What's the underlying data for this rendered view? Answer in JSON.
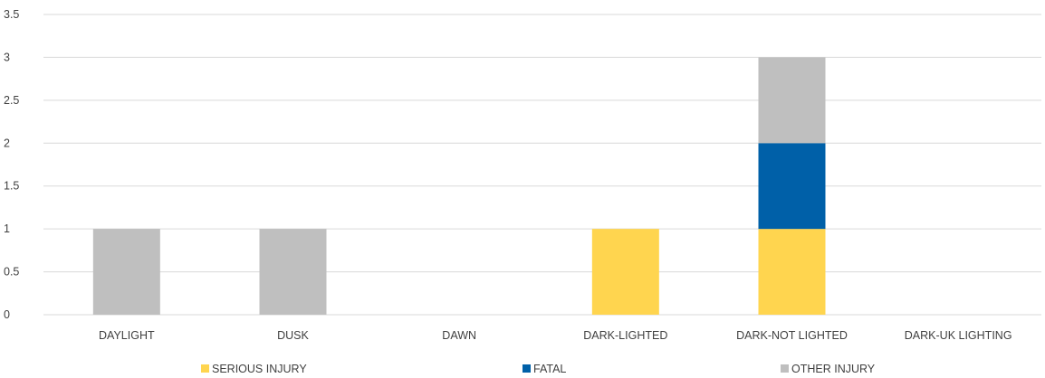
{
  "chart_data": {
    "type": "bar",
    "stacked": true,
    "categories": [
      "DAYLIGHT",
      "DUSK",
      "DAWN",
      "DARK-LIGHTED",
      "DARK-NOT LIGHTED",
      "DARK-UK LIGHTING"
    ],
    "series": [
      {
        "name": "SERIOUS INJURY",
        "color": "#ffd54f",
        "values": [
          0,
          0,
          0,
          1,
          1,
          0
        ]
      },
      {
        "name": "FATAL",
        "color": "#0060a8",
        "values": [
          0,
          0,
          0,
          0,
          1,
          0
        ]
      },
      {
        "name": "OTHER INJURY",
        "color": "#bfbfbf",
        "values": [
          1,
          1,
          0,
          0,
          1,
          0
        ]
      }
    ],
    "yticks": [
      "0",
      "0.5",
      "1",
      "1.5",
      "2",
      "2.5",
      "3",
      "3.5"
    ],
    "ylim": [
      0,
      3.5
    ],
    "grid": true,
    "legend_position": "bottom",
    "title": "",
    "xlabel": "",
    "ylabel": ""
  }
}
